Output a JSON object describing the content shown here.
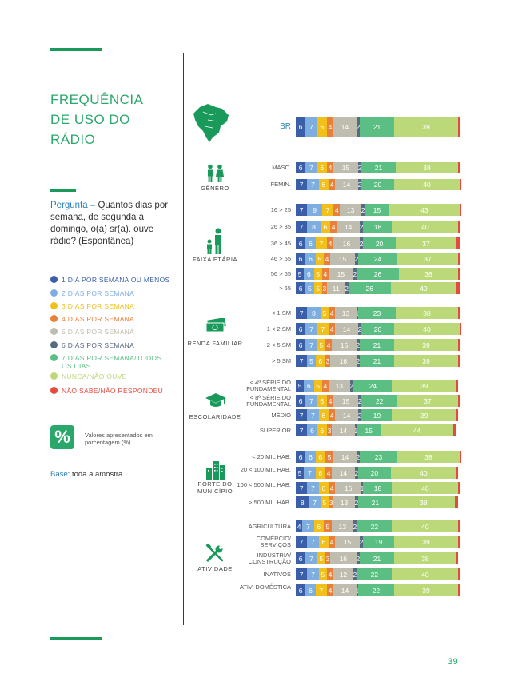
{
  "page": {
    "title_lines": [
      "FREQUÊNCIA",
      "DE USO DO",
      "RÁDIO"
    ],
    "question_label": "Pergunta –",
    "question_text": "Quantos dias por semana, de segunda a domingo, o(a) sr(a). ouve rádio? (Espontânea)",
    "percent_symbol": "%",
    "percent_note": "Valores apresentados em porcentagem (%).",
    "base_label": "Base:",
    "base_text": "toda a amostra.",
    "page_number": "39"
  },
  "colors": {
    "title": "#2aa86b",
    "rule": "#1a9a5a",
    "segments": [
      "#3a5fa8",
      "#7eaee0",
      "#f2c01a",
      "#e8803a",
      "#bfbdb0",
      "#566a82",
      "#5bbf84",
      "#bcd97a",
      "#e64a3e"
    ]
  },
  "chart_data": {
    "type": "bar",
    "orientation": "horizontal",
    "stacked": true,
    "xlim": [
      0,
      100
    ],
    "unit": "%",
    "legend": [
      {
        "label": "1 DIA POR SEMANA OU MENOS",
        "color": "#3a5fa8"
      },
      {
        "label": "2 DIAS POR SEMANA",
        "color": "#7eaee0"
      },
      {
        "label": "3 DIAS POR SEMANA",
        "color": "#f2c01a"
      },
      {
        "label": "4 DIAS POR SEMANA",
        "color": "#e8803a"
      },
      {
        "label": "5 DIAS POR SEMANA",
        "color": "#bfbdb0"
      },
      {
        "label": "6 DIAS POR SEMANA",
        "color": "#566a82"
      },
      {
        "label": "7 DIAS POR SEMANA/TODOS OS DIAS",
        "color": "#5bbf84"
      },
      {
        "label": "NUNCA/NÃO OUVE",
        "color": "#bcd97a"
      },
      {
        "label": "NÃO SABE/NÃO RESPONDEU",
        "color": "#e64a3e"
      }
    ],
    "groups": [
      {
        "label": "",
        "icon": "brazil-map-icon",
        "rows": [
          {
            "label": "BR",
            "values": [
              6,
              7,
              6,
              4,
              14,
              2,
              21,
              39,
              1
            ]
          }
        ]
      },
      {
        "label": "GÊNERO",
        "icon": "gender-icon",
        "rows": [
          {
            "label": "MASC.",
            "values": [
              6,
              7,
              6,
              4,
              15,
              2,
              21,
              38,
              1
            ]
          },
          {
            "label": "FEMIN.",
            "values": [
              7,
              7,
              6,
              4,
              14,
              2,
              20,
              40,
              1
            ]
          }
        ]
      },
      {
        "label": "FAIXA ETÁRIA",
        "icon": "age-icon",
        "rows": [
          {
            "label": "16 > 25",
            "values": [
              7,
              9,
              7,
              4,
              13,
              2,
              15,
              43,
              1
            ]
          },
          {
            "label": "26 > 35",
            "values": [
              7,
              8,
              6,
              4,
              14,
              2,
              18,
              40,
              1
            ]
          },
          {
            "label": "36 > 45",
            "values": [
              6,
              6,
              7,
              4,
              16,
              2,
              20,
              37,
              2
            ]
          },
          {
            "label": "46 > 55",
            "values": [
              6,
              6,
              5,
              4,
              15,
              2,
              24,
              37,
              1
            ]
          },
          {
            "label": "56 > 65",
            "values": [
              5,
              6,
              5,
              4,
              15,
              2,
              26,
              36,
              1
            ]
          },
          {
            "label": "> 65",
            "values": [
              6,
              5,
              5,
              3,
              11,
              2,
              26,
              40,
              2
            ]
          }
        ]
      },
      {
        "label": "RENDA FAMILIAR",
        "icon": "money-icon",
        "rows": [
          {
            "label": "< 1 SM",
            "values": [
              7,
              8,
              5,
              4,
              13,
              1,
              23,
              38,
              1
            ]
          },
          {
            "label": "1 < 2 SM",
            "values": [
              6,
              7,
              7,
              4,
              14,
              2,
              20,
              40,
              1
            ]
          },
          {
            "label": "2 < 5 SM",
            "values": [
              6,
              7,
              5,
              4,
              15,
              2,
              21,
              39,
              1
            ]
          },
          {
            "label": "> 5 SM",
            "values": [
              7,
              5,
              6,
              3,
              16,
              2,
              21,
              39,
              1
            ]
          }
        ]
      },
      {
        "label": "ESCOLARIDADE",
        "icon": "graduation-cap-icon",
        "rows": [
          {
            "label": "< 4ª SÉRIE DO FUNDAMENTAL",
            "values": [
              5,
              6,
              5,
              4,
              13,
              2,
              24,
              39,
              1
            ]
          },
          {
            "label": "< 8ª SÉRIE DO FUNDAMENTAL",
            "values": [
              6,
              7,
              6,
              4,
              15,
              2,
              22,
              37,
              1
            ]
          },
          {
            "label": "MÉDIO",
            "values": [
              7,
              7,
              6,
              4,
              14,
              2,
              19,
              39,
              1
            ]
          },
          {
            "label": "SUPERIOR",
            "values": [
              7,
              6,
              6,
              3,
              14,
              1,
              15,
              44,
              2
            ]
          }
        ]
      },
      {
        "label": "PORTE DO MUNICÍPIO",
        "icon": "buildings-icon",
        "rows": [
          {
            "label": "< 20 MIL HAB.",
            "values": [
              6,
              6,
              6,
              5,
              14,
              2,
              23,
              38,
              1
            ]
          },
          {
            "label": "20 < 100 MIL HAB.",
            "values": [
              5,
              7,
              6,
              4,
              14,
              2,
              20,
              40,
              1
            ]
          },
          {
            "label": "100 < 500 MIL HAB.",
            "values": [
              7,
              7,
              6,
              4,
              16,
              1,
              18,
              40,
              1
            ]
          },
          {
            "label": "> 500 MIL HAB.",
            "values": [
              8,
              7,
              5,
              3,
              13,
              2,
              21,
              38,
              2
            ]
          }
        ]
      },
      {
        "label": "ATIVIDADE",
        "icon": "tools-icon",
        "rows": [
          {
            "label": "AGRICULTURA",
            "values": [
              4,
              7,
              6,
              5,
              13,
              2,
              22,
              40,
              1
            ]
          },
          {
            "label": "COMÉRCIO/ SERVIÇOS",
            "values": [
              7,
              7,
              6,
              4,
              15,
              2,
              19,
              39,
              1
            ]
          },
          {
            "label": "INDÚSTRIA/ CONSTRUÇÃO",
            "values": [
              6,
              7,
              5,
              3,
              16,
              2,
              21,
              38,
              1
            ]
          },
          {
            "label": "INATIVOS",
            "values": [
              7,
              7,
              5,
              4,
              12,
              2,
              22,
              40,
              1
            ]
          },
          {
            "label": "ATIV. DOMÉSTICA",
            "values": [
              6,
              6,
              7,
              4,
              14,
              1,
              22,
              39,
              1
            ]
          }
        ]
      }
    ]
  }
}
